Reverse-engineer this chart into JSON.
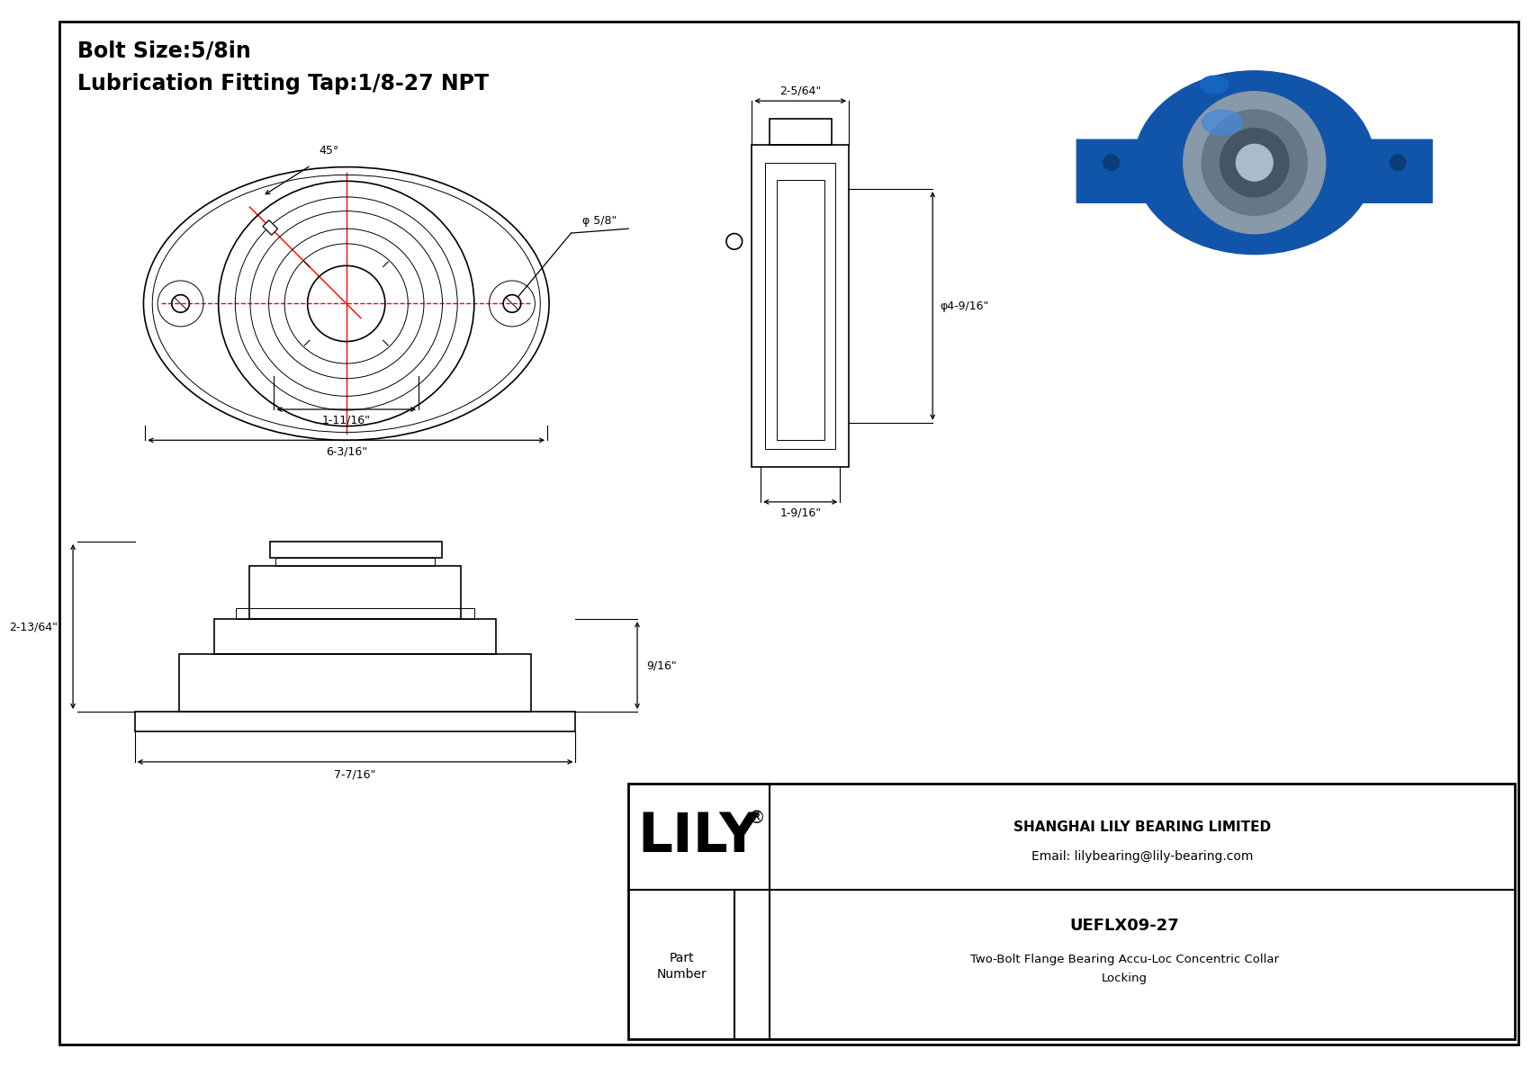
{
  "title_line1": "Bolt Size:5/8in",
  "title_line2": "Lubrication Fitting Tap:1/8-27 NPT",
  "bg_color": "#ffffff",
  "line_color": "#000000",
  "red_color": "#ff0000",
  "part_number": "UEFLX09-27",
  "part_desc1": "Two-Bolt Flange Bearing Accu-Loc Concentric Collar",
  "part_desc2": "Locking",
  "company": "SHANGHAI LILY BEARING LIMITED",
  "email": "Email: lilybearing@lily-bearing.com",
  "lily_text": "LILY",
  "dim_6_3_16": "6-3/16\"",
  "dim_1_11_16": "1-11/16\"",
  "dim_phi_5_8": "φ 5/8\"",
  "dim_45": "45°",
  "dim_2_5_64": "2-5/64\"",
  "dim_phi_4_9_16": "φ4-9/16\"",
  "dim_1_9_16": "1-9/16\"",
  "dim_2_13_64": "2-13/64\"",
  "dim_7_7_16": "7-7/16\"",
  "dim_9_16": "9/16\""
}
